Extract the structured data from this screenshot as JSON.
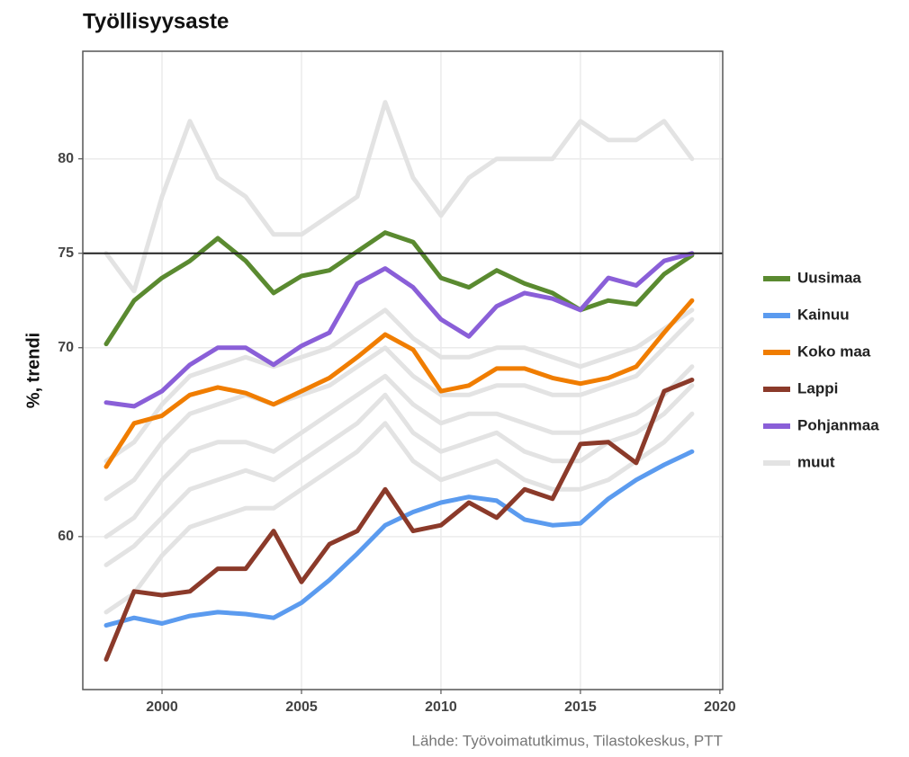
{
  "chart_data": {
    "type": "line",
    "title": "Työllisyysaste",
    "y_label": "%, trendi",
    "source": "Lähde: Työvoimatutkimus, Tilastokeskus, PTT",
    "x": [
      1998,
      1999,
      2000,
      2001,
      2002,
      2003,
      2004,
      2005,
      2006,
      2007,
      2008,
      2009,
      2010,
      2011,
      2012,
      2013,
      2014,
      2015,
      2016,
      2017,
      2018,
      2019
    ],
    "xlim": [
      1997.16,
      2020.1
    ],
    "xticks": [
      2000,
      2005,
      2010,
      2015,
      2020
    ],
    "ylim": [
      51.9,
      85.7
    ],
    "yticks": [
      60,
      70,
      75,
      80
    ],
    "grid": true,
    "hline": 75,
    "legend": "right",
    "series": [
      {
        "name": "Uusimaa",
        "color": "#5a8a30",
        "values": [
          70.2,
          72.5,
          73.7,
          74.6,
          75.8,
          74.6,
          72.9,
          73.8,
          74.1,
          75.1,
          76.1,
          75.6,
          73.7,
          73.2,
          74.1,
          73.4,
          72.9,
          72.0,
          72.5,
          72.3,
          73.9,
          74.9
        ]
      },
      {
        "name": "Kainuu",
        "color": "#5b9bef",
        "values": [
          55.3,
          55.7,
          55.4,
          55.8,
          56.0,
          55.9,
          55.7,
          56.5,
          57.7,
          59.1,
          60.6,
          61.3,
          61.8,
          62.1,
          61.9,
          60.9,
          60.6,
          60.7,
          62.0,
          63.0,
          63.8,
          64.5
        ]
      },
      {
        "name": "Koko maa",
        "color": "#f07d00",
        "values": [
          63.7,
          66.0,
          66.4,
          67.5,
          67.9,
          67.6,
          67.0,
          67.7,
          68.4,
          69.5,
          70.7,
          69.9,
          67.7,
          68.0,
          68.9,
          68.9,
          68.4,
          68.1,
          68.4,
          69.0,
          70.8,
          72.5
        ]
      },
      {
        "name": "Lappi",
        "color": "#8b3a2a",
        "values": [
          53.5,
          57.1,
          56.9,
          57.1,
          58.3,
          58.3,
          60.3,
          57.6,
          59.6,
          60.3,
          62.5,
          60.3,
          60.6,
          61.8,
          61.0,
          62.5,
          62.0,
          64.9,
          65.0,
          63.9,
          67.7,
          68.3
        ]
      },
      {
        "name": "Pohjanmaa",
        "color": "#8a5fd8",
        "values": [
          67.1,
          66.9,
          67.7,
          69.1,
          70.0,
          70.0,
          69.1,
          70.1,
          70.8,
          73.4,
          74.2,
          73.2,
          71.5,
          70.6,
          72.2,
          72.9,
          72.6,
          72.0,
          73.7,
          73.3,
          74.6,
          75.0
        ]
      },
      {
        "name": "muut",
        "color": "#e3e3e3",
        "values": [
          75,
          73,
          78,
          82,
          79,
          78,
          76,
          76,
          77,
          78,
          83,
          79,
          77,
          79,
          80,
          80,
          80,
          82,
          81,
          81,
          82,
          80
        ]
      },
      {
        "name": "muut",
        "color": "#e3e3e3",
        "values": [
          62,
          63,
          65,
          66.5,
          67,
          67.5,
          67,
          67.5,
          68,
          69,
          70,
          68.5,
          67.5,
          67.5,
          68,
          68,
          67.5,
          67.5,
          68,
          68.5,
          70,
          71.5
        ]
      },
      {
        "name": "muut",
        "color": "#e3e3e3",
        "values": [
          60,
          61,
          63,
          64.5,
          65,
          65,
          64.5,
          65.5,
          66.5,
          67.5,
          68.5,
          67,
          66,
          66.5,
          66.5,
          66,
          65.5,
          65.5,
          66,
          66.5,
          67.5,
          69
        ]
      },
      {
        "name": "muut",
        "color": "#e3e3e3",
        "values": [
          58.5,
          59.5,
          61,
          62.5,
          63,
          63.5,
          63,
          64,
          65,
          66,
          67.5,
          65.5,
          64.5,
          65,
          65.5,
          64.5,
          64,
          64,
          65,
          65.5,
          66.5,
          68
        ]
      },
      {
        "name": "muut",
        "color": "#e3e3e3",
        "values": [
          56,
          57,
          59,
          60.5,
          61,
          61.5,
          61.5,
          62.5,
          63.5,
          64.5,
          66,
          64,
          63,
          63.5,
          64,
          63,
          62.5,
          62.5,
          63,
          64,
          65,
          66.5
        ]
      },
      {
        "name": "muut",
        "color": "#e3e3e3",
        "values": [
          64,
          65,
          67,
          68.5,
          69,
          69.5,
          69,
          69.5,
          70,
          71,
          72,
          70.5,
          69.5,
          69.5,
          70,
          70,
          69.5,
          69,
          69.5,
          70,
          71,
          72
        ]
      }
    ]
  }
}
